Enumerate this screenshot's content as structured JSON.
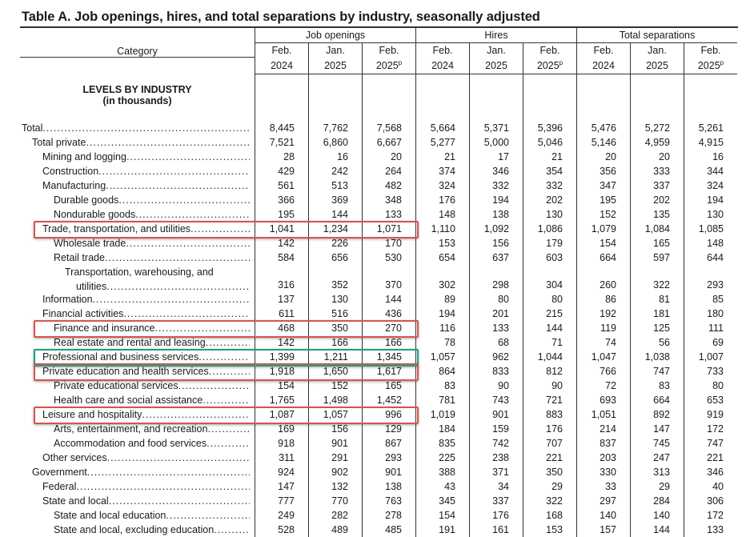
{
  "title": "Table A. Job openings, hires, and total separations by industry, seasonally adjusted",
  "header": {
    "category": "Category",
    "groups": [
      "Job openings",
      "Hires",
      "Total separations"
    ],
    "periods": [
      {
        "line1": "Feb.",
        "line2": "2024",
        "sup": ""
      },
      {
        "line1": "Jan.",
        "line2": "2025",
        "sup": ""
      },
      {
        "line1": "Feb.",
        "line2": "2025",
        "sup": "p"
      }
    ]
  },
  "section": {
    "line1": "LEVELS BY INDUSTRY",
    "line2": "(in thousands)"
  },
  "colors": {
    "red": "#d9534f",
    "teal": "#1aa08a"
  },
  "rows": [
    {
      "label": "Total",
      "indent": 0,
      "values": [
        "8,445",
        "7,762",
        "7,568",
        "5,664",
        "5,371",
        "5,396",
        "5,476",
        "5,272",
        "5,261"
      ]
    },
    {
      "label": "Total private",
      "indent": 1,
      "values": [
        "7,521",
        "6,860",
        "6,667",
        "5,277",
        "5,000",
        "5,046",
        "5,146",
        "4,959",
        "4,915"
      ]
    },
    {
      "label": "Mining and logging",
      "indent": 2,
      "values": [
        "28",
        "16",
        "20",
        "21",
        "17",
        "21",
        "20",
        "20",
        "16"
      ]
    },
    {
      "label": "Construction",
      "indent": 2,
      "values": [
        "429",
        "242",
        "264",
        "374",
        "346",
        "354",
        "356",
        "333",
        "344"
      ]
    },
    {
      "label": "Manufacturing",
      "indent": 2,
      "values": [
        "561",
        "513",
        "482",
        "324",
        "332",
        "332",
        "347",
        "337",
        "324"
      ]
    },
    {
      "label": "Durable goods",
      "indent": 3,
      "values": [
        "366",
        "369",
        "348",
        "176",
        "194",
        "202",
        "195",
        "202",
        "194"
      ]
    },
    {
      "label": "Nondurable goods",
      "indent": 3,
      "values": [
        "195",
        "144",
        "133",
        "148",
        "138",
        "130",
        "152",
        "135",
        "130"
      ]
    },
    {
      "label": "Trade, transportation, and utilities",
      "indent": 2,
      "highlight": "red",
      "values": [
        "1,041",
        "1,234",
        "1,071",
        "1,110",
        "1,092",
        "1,086",
        "1,079",
        "1,084",
        "1,085"
      ]
    },
    {
      "label": "Wholesale trade",
      "indent": 3,
      "values": [
        "142",
        "226",
        "170",
        "153",
        "156",
        "179",
        "154",
        "165",
        "148"
      ]
    },
    {
      "label": "Retail trade",
      "indent": 3,
      "values": [
        "584",
        "656",
        "530",
        "654",
        "637",
        "603",
        "664",
        "597",
        "644"
      ]
    },
    {
      "label": "Transportation, warehousing, and",
      "label2": "utilities",
      "indent": 3,
      "values": [
        "316",
        "352",
        "370",
        "302",
        "298",
        "304",
        "260",
        "322",
        "293"
      ]
    },
    {
      "label": "Information",
      "indent": 2,
      "values": [
        "137",
        "130",
        "144",
        "89",
        "80",
        "80",
        "86",
        "81",
        "85"
      ]
    },
    {
      "label": "Financial activities",
      "indent": 2,
      "values": [
        "611",
        "516",
        "436",
        "194",
        "201",
        "215",
        "192",
        "181",
        "180"
      ]
    },
    {
      "label": "Finance and insurance",
      "indent": 3,
      "highlight": "red",
      "values": [
        "468",
        "350",
        "270",
        "116",
        "133",
        "144",
        "119",
        "125",
        "111"
      ]
    },
    {
      "label": "Real estate and rental and leasing",
      "indent": 3,
      "values": [
        "142",
        "166",
        "166",
        "78",
        "68",
        "71",
        "74",
        "56",
        "69"
      ]
    },
    {
      "label": "Professional and business services",
      "indent": 2,
      "highlight": "teal",
      "values": [
        "1,399",
        "1,211",
        "1,345",
        "1,057",
        "962",
        "1,044",
        "1,047",
        "1,038",
        "1,007"
      ]
    },
    {
      "label": "Private education and health services",
      "indent": 2,
      "highlight": "red",
      "values": [
        "1,918",
        "1,650",
        "1,617",
        "864",
        "833",
        "812",
        "766",
        "747",
        "733"
      ]
    },
    {
      "label": "Private educational services",
      "indent": 3,
      "values": [
        "154",
        "152",
        "165",
        "83",
        "90",
        "90",
        "72",
        "83",
        "80"
      ]
    },
    {
      "label": "Health care and social assistance",
      "indent": 3,
      "values": [
        "1,765",
        "1,498",
        "1,452",
        "781",
        "743",
        "721",
        "693",
        "664",
        "653"
      ]
    },
    {
      "label": "Leisure and hospitality",
      "indent": 2,
      "highlight": "red",
      "values": [
        "1,087",
        "1,057",
        "996",
        "1,019",
        "901",
        "883",
        "1,051",
        "892",
        "919"
      ]
    },
    {
      "label": "Arts, entertainment, and recreation",
      "indent": 3,
      "values": [
        "169",
        "156",
        "129",
        "184",
        "159",
        "176",
        "214",
        "147",
        "172"
      ]
    },
    {
      "label": "Accommodation and food services",
      "indent": 3,
      "values": [
        "918",
        "901",
        "867",
        "835",
        "742",
        "707",
        "837",
        "745",
        "747"
      ]
    },
    {
      "label": "Other services",
      "indent": 2,
      "values": [
        "311",
        "291",
        "293",
        "225",
        "238",
        "221",
        "203",
        "247",
        "221"
      ]
    },
    {
      "label": "Government",
      "indent": 1,
      "values": [
        "924",
        "902",
        "901",
        "388",
        "371",
        "350",
        "330",
        "313",
        "346"
      ]
    },
    {
      "label": "Federal",
      "indent": 2,
      "values": [
        "147",
        "132",
        "138",
        "43",
        "34",
        "29",
        "33",
        "29",
        "40"
      ]
    },
    {
      "label": "State and local",
      "indent": 2,
      "values": [
        "777",
        "770",
        "763",
        "345",
        "337",
        "322",
        "297",
        "284",
        "306"
      ]
    },
    {
      "label": "State and local education",
      "indent": 3,
      "values": [
        "249",
        "282",
        "278",
        "154",
        "176",
        "168",
        "140",
        "140",
        "172"
      ]
    },
    {
      "label": "State and local, excluding education",
      "indent": 3,
      "values": [
        "528",
        "489",
        "485",
        "191",
        "161",
        "153",
        "157",
        "144",
        "133"
      ]
    }
  ]
}
